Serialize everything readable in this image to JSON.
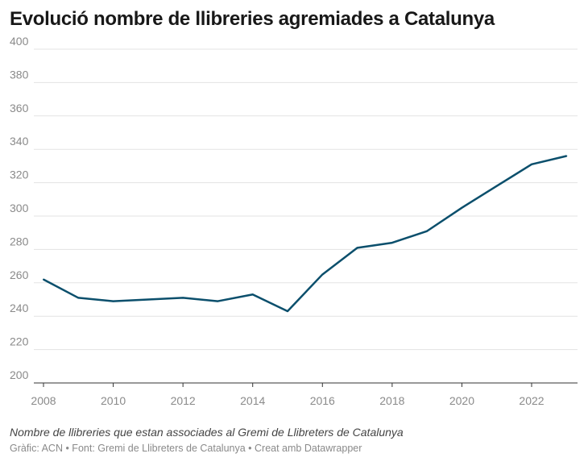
{
  "chart_data": {
    "type": "line",
    "title": "Evolució nombre de llibreries agremiades a Catalunya",
    "description": "Nombre de llibreries que estan associades al Gremi de Llibreters de Catalunya",
    "source": "Gràfic: ACN • Font: Gremi de Llibreters de Catalunya • Creat amb Datawrapper",
    "x": [
      2008,
      2009,
      2010,
      2011,
      2012,
      2013,
      2014,
      2015,
      2016,
      2017,
      2018,
      2019,
      2020,
      2021,
      2022,
      2023
    ],
    "values": [
      262,
      251,
      249,
      250,
      251,
      249,
      253,
      243,
      265,
      281,
      284,
      291,
      305,
      318,
      331,
      336
    ],
    "xlim": [
      2008,
      2023.9
    ],
    "ylim": [
      200,
      400
    ],
    "yticks": [
      200,
      220,
      240,
      260,
      280,
      300,
      320,
      340,
      360,
      380,
      400
    ],
    "xticks": [
      2008,
      2010,
      2012,
      2014,
      2016,
      2018,
      2020,
      2022
    ],
    "grid": true,
    "line_color": "#0b4f6c"
  }
}
